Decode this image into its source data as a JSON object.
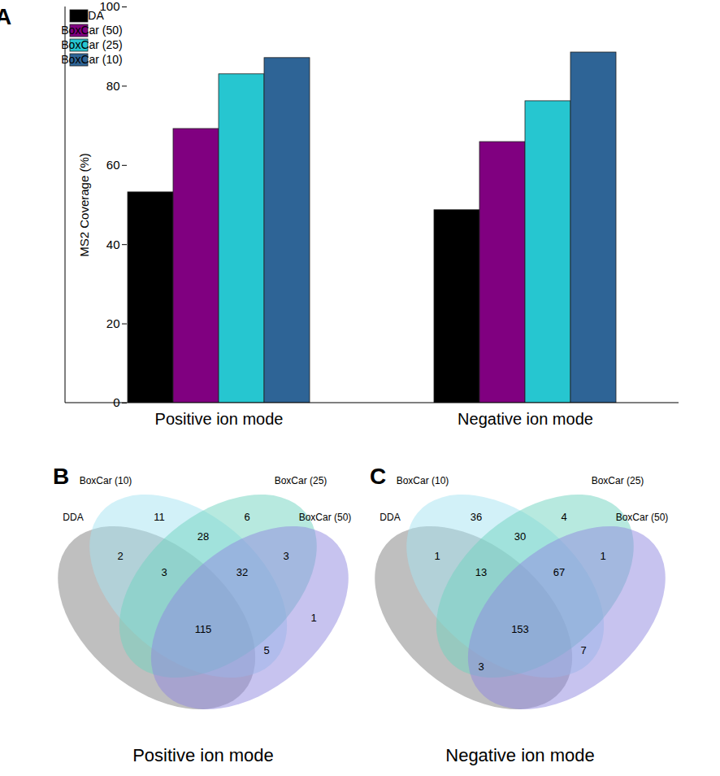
{
  "chart_data": [
    {
      "type": "bar",
      "annotations": [
        "A"
      ],
      "ylabel": "MS2 Coverage (%)",
      "categories": [
        "Positive ion mode",
        "Negative ion mode"
      ],
      "series": [
        {
          "name": "DDA",
          "color": "#000000",
          "values": [
            53.2,
            48.7
          ]
        },
        {
          "name": "BoxCar (50)",
          "color": "#800080",
          "values": [
            69.2,
            65.9
          ]
        },
        {
          "name": "BoxCar (25)",
          "color": "#26c6d0",
          "values": [
            83.0,
            76.2
          ]
        },
        {
          "name": "BoxCar (10)",
          "color": "#2e6496",
          "values": [
            87.1,
            88.5
          ]
        }
      ],
      "ylim": [
        0,
        100
      ],
      "yticks": [
        0,
        20,
        40,
        60,
        80,
        100
      ],
      "legend": "top-left",
      "grid": false
    },
    {
      "type": "venn",
      "title": "Positive ion mode",
      "annotations": [
        "B"
      ],
      "sets": [
        {
          "name": "DDA",
          "color": "#808080"
        },
        {
          "name": "BoxCar (10)",
          "color": "#a6e3f2"
        },
        {
          "name": "BoxCar (25)",
          "color": "#6fd3bf"
        },
        {
          "name": "BoxCar (50)",
          "color": "#8f88e0"
        }
      ],
      "regions": [
        {
          "sets": [
            "BoxCar (10)"
          ],
          "value": 11
        },
        {
          "sets": [
            "BoxCar (25)"
          ],
          "value": 6
        },
        {
          "sets": [
            "BoxCar (50)"
          ],
          "value": 1
        },
        {
          "sets": [
            "DDA",
            "BoxCar (10)"
          ],
          "value": 2
        },
        {
          "sets": [
            "BoxCar (10)",
            "BoxCar (25)"
          ],
          "value": 28
        },
        {
          "sets": [
            "BoxCar (25)",
            "BoxCar (50)"
          ],
          "value": 3
        },
        {
          "sets": [
            "DDA",
            "BoxCar (10)",
            "BoxCar (25)"
          ],
          "value": 3
        },
        {
          "sets": [
            "BoxCar (10)",
            "BoxCar (25)",
            "BoxCar (50)"
          ],
          "value": 32
        },
        {
          "sets": [
            "DDA",
            "BoxCar (10)",
            "BoxCar (25)",
            "BoxCar (50)"
          ],
          "value": 115
        },
        {
          "sets": [
            "BoxCar (10)",
            "BoxCar (50)"
          ],
          "value": 5
        }
      ]
    },
    {
      "type": "venn",
      "title": "Negative ion mode",
      "annotations": [
        "C"
      ],
      "sets": [
        {
          "name": "DDA",
          "color": "#808080"
        },
        {
          "name": "BoxCar (10)",
          "color": "#a6e3f2"
        },
        {
          "name": "BoxCar (25)",
          "color": "#6fd3bf"
        },
        {
          "name": "BoxCar (50)",
          "color": "#8f88e0"
        }
      ],
      "regions": [
        {
          "sets": [
            "BoxCar (10)"
          ],
          "value": 36
        },
        {
          "sets": [
            "BoxCar (25)"
          ],
          "value": 4
        },
        {
          "sets": [
            "DDA",
            "BoxCar (10)"
          ],
          "value": 1
        },
        {
          "sets": [
            "BoxCar (25)",
            "BoxCar (50)"
          ],
          "value": 1
        },
        {
          "sets": [
            "BoxCar (10)",
            "BoxCar (25)"
          ],
          "value": 30
        },
        {
          "sets": [
            "DDA",
            "BoxCar (10)",
            "BoxCar (25)"
          ],
          "value": 13
        },
        {
          "sets": [
            "BoxCar (10)",
            "BoxCar (25)",
            "BoxCar (50)"
          ],
          "value": 67
        },
        {
          "sets": [
            "DDA",
            "BoxCar (10)",
            "BoxCar (25)",
            "BoxCar (50)"
          ],
          "value": 153
        },
        {
          "sets": [
            "BoxCar (10)",
            "BoxCar (50)"
          ],
          "value": 7
        },
        {
          "sets": [
            "DDA",
            "BoxCar (25)",
            "BoxCar (50)"
          ],
          "value": 3
        }
      ]
    }
  ]
}
